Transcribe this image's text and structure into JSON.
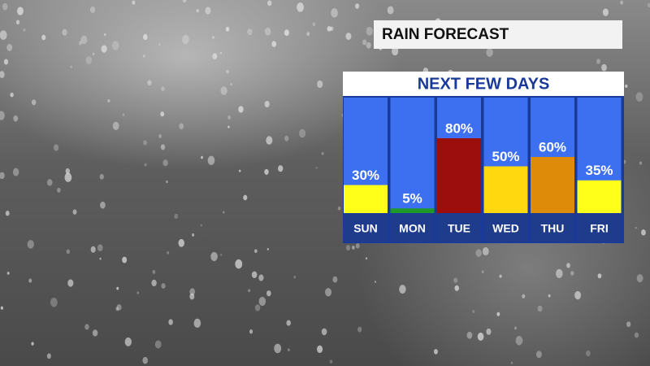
{
  "chart_data": {
    "type": "bar",
    "title": "RAIN FORECAST",
    "subtitle": "NEXT FEW DAYS",
    "categories": [
      "SUN",
      "MON",
      "TUE",
      "WED",
      "THU",
      "FRI"
    ],
    "values": [
      30,
      5,
      80,
      50,
      60,
      35
    ],
    "value_labels": [
      "30%",
      "5%",
      "80%",
      "50%",
      "60%",
      "35%"
    ],
    "colors": [
      "#ffff1a",
      "#1f9a2a",
      "#9c0d0d",
      "#ffd80f",
      "#dd8b08",
      "#ffff1a"
    ],
    "ylim": [
      0,
      100
    ]
  }
}
